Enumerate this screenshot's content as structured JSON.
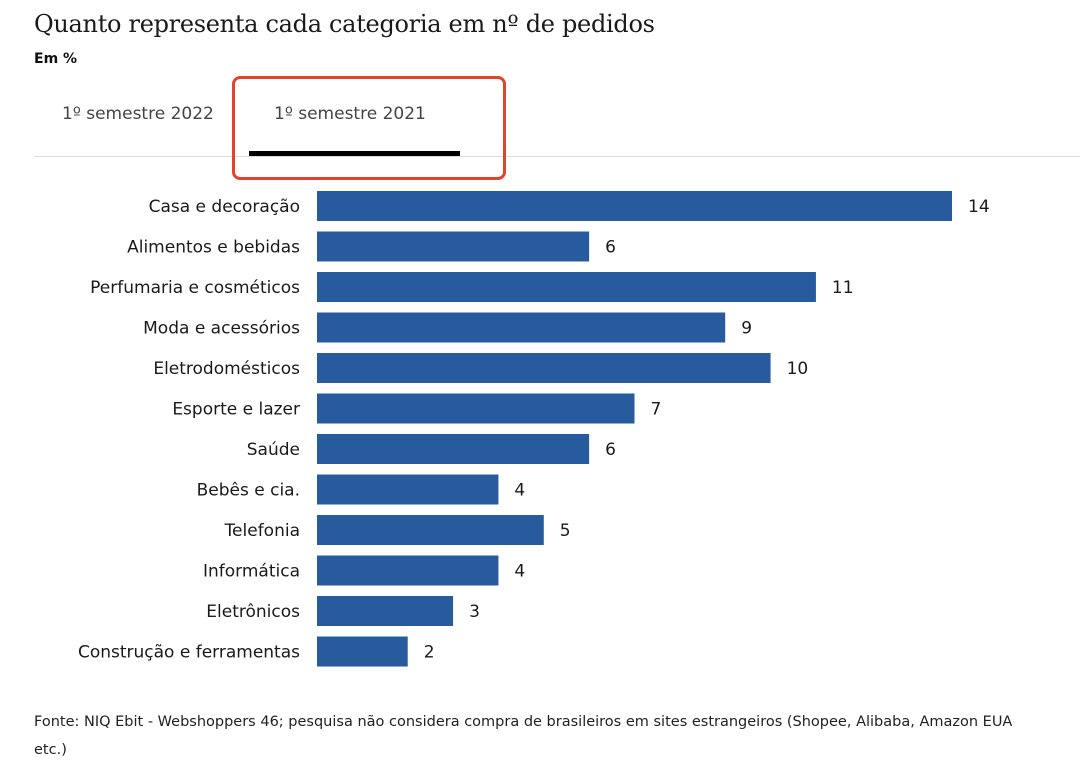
{
  "header": {
    "title": "Quanto representa cada categoria em nº de pedidos",
    "subtitle": "Em %"
  },
  "tabs": [
    {
      "label": "1º semestre 2022",
      "active": false
    },
    {
      "label": "1º semestre 2021",
      "active": true
    }
  ],
  "highlight_color": "#e0442f",
  "bar_color": "#285b9e",
  "chart_data": {
    "type": "bar",
    "orientation": "horizontal",
    "title": "Quanto representa cada categoria em nº de pedidos",
    "subtitle": "Em %",
    "xlabel": "",
    "ylabel": "",
    "xlim": [
      0,
      14
    ],
    "grid": false,
    "legend": "none",
    "categories": [
      "Casa e decoração",
      "Alimentos e bebidas",
      "Perfumaria e cosméticos",
      "Moda e acessórios",
      "Eletrodomésticos",
      "Esporte e lazer",
      "Saúde",
      "Bebês e cia.",
      "Telefonia",
      "Informática",
      "Eletrônicos",
      "Construção e ferramentas"
    ],
    "values": [
      14,
      6,
      11,
      9,
      10,
      7,
      6,
      4,
      5,
      4,
      3,
      2
    ],
    "value_labels": [
      "14",
      "6",
      "11",
      "9",
      "10",
      "7",
      "6",
      "4",
      "5",
      "4",
      "3",
      "2"
    ]
  },
  "footer": {
    "source": "Fonte: NIQ Ebit - Webshoppers 46; pesquisa não considera compra de brasileiros em sites estrangeiros (Shopee, Alibaba, Amazon EUA etc.)"
  }
}
